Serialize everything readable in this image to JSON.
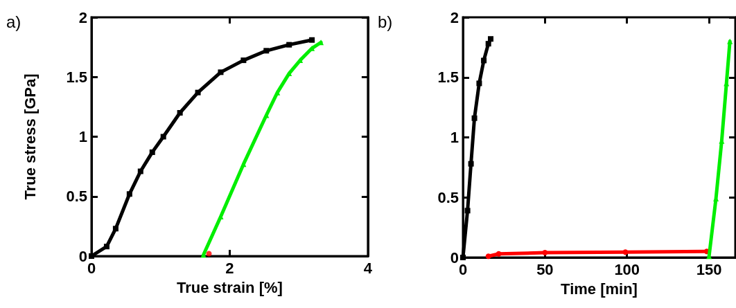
{
  "chart_data": [
    {
      "type": "line",
      "title": "a)",
      "xlabel": "True strain [%]",
      "ylabel": "True stress [GPa]",
      "xlim": [
        0,
        4
      ],
      "xticks": [
        0,
        2,
        4
      ],
      "ylim": [
        0,
        2
      ],
      "yticks": [
        0,
        0.5,
        1,
        1.5,
        2
      ],
      "grid": false,
      "series": [
        {
          "color": "#000000",
          "marker": "square",
          "x": [
            0,
            0.22,
            0.35,
            0.55,
            0.71,
            0.88,
            1.04,
            1.28,
            1.54,
            1.87,
            2.2,
            2.53,
            2.86,
            3.19
          ],
          "values": [
            0,
            0.08,
            0.23,
            0.52,
            0.71,
            0.87,
            1.0,
            1.2,
            1.37,
            1.54,
            1.64,
            1.72,
            1.77,
            1.81
          ]
        },
        {
          "color": "#00ee00",
          "marker": "triangle",
          "x": [
            1.62,
            1.87,
            2.2,
            2.53,
            2.69,
            2.86,
            3.02,
            3.19,
            3.32
          ],
          "values": [
            0.01,
            0.33,
            0.77,
            1.18,
            1.37,
            1.53,
            1.64,
            1.74,
            1.79
          ]
        },
        {
          "type": "scatter",
          "color": "#ff0000",
          "marker": "circle",
          "x": [
            1.7
          ],
          "values": [
            0.02
          ]
        }
      ]
    },
    {
      "type": "line",
      "title": "b)",
      "xlabel": "Time [min]",
      "xlim": [
        0,
        166
      ],
      "xticks": [
        0,
        50,
        100,
        150
      ],
      "ylim": [
        0,
        2
      ],
      "yticks": [
        0,
        0.5,
        1,
        1.5,
        2
      ],
      "grid": false,
      "series": [
        {
          "color": "#000000",
          "marker": "square",
          "x": [
            0,
            2.8,
            4.9,
            7,
            9.9,
            12.7,
            15.5,
            16.9
          ],
          "values": [
            0,
            0.39,
            0.78,
            1.16,
            1.45,
            1.64,
            1.78,
            1.82
          ]
        },
        {
          "color": "#ff0000",
          "marker": "circle",
          "x": [
            15.5,
            21.8,
            50,
            99,
            148.6
          ],
          "values": [
            0.01,
            0.03,
            0.04,
            0.045,
            0.05
          ]
        },
        {
          "color": "#00ee00",
          "marker": "triangle",
          "x": [
            150,
            154.2,
            157.7,
            160.6,
            162.7
          ],
          "values": [
            0.01,
            0.49,
            0.97,
            1.45,
            1.8
          ]
        }
      ]
    }
  ]
}
